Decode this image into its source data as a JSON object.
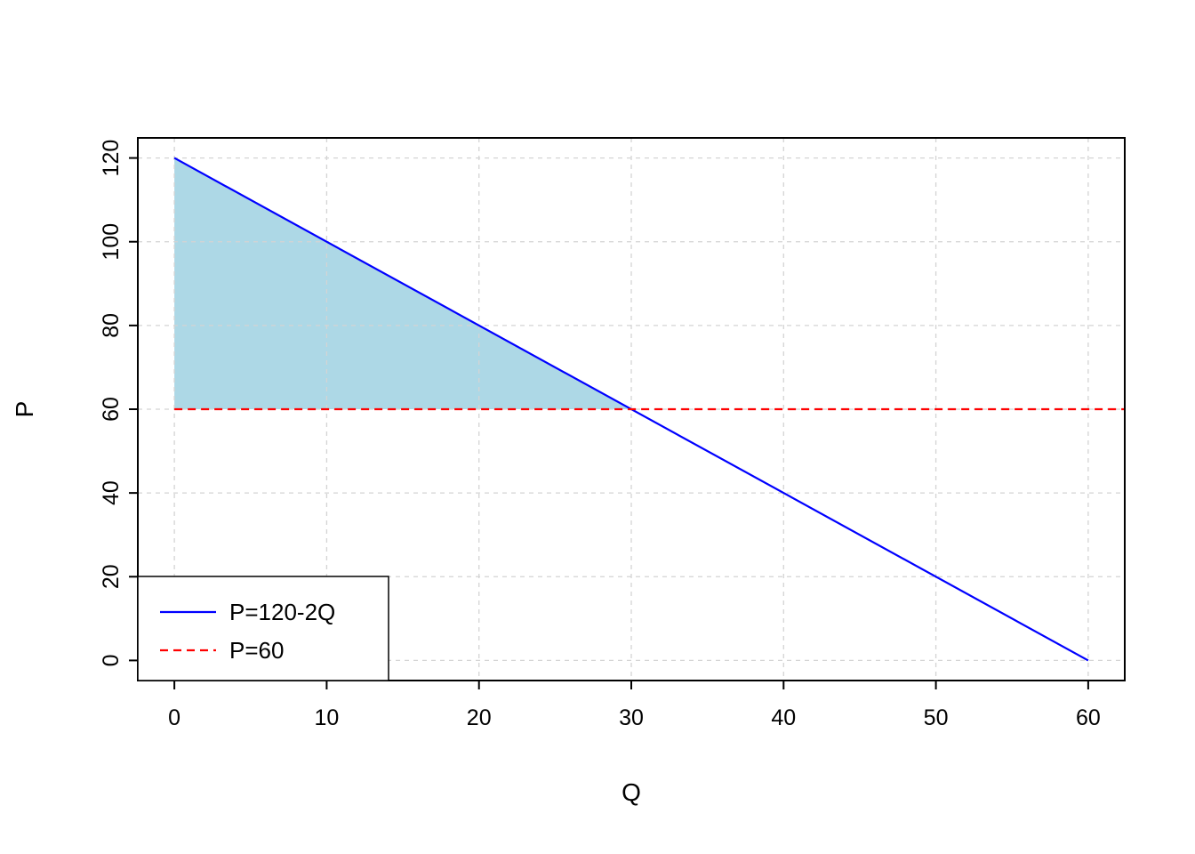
{
  "page": {
    "background": "#ffffff"
  },
  "chart_data": {
    "type": "line",
    "title": "",
    "xlabel": "Q",
    "ylabel": "P",
    "xlim": [
      0,
      60
    ],
    "ylim": [
      0,
      120
    ],
    "xticks": [
      0,
      10,
      20,
      30,
      40,
      50,
      60
    ],
    "yticks": [
      0,
      20,
      40,
      60,
      80,
      100,
      120
    ],
    "grid": true,
    "grid_color": "#d4d4d4",
    "axis_color": "#000000",
    "series": [
      {
        "name": "P=120-2Q",
        "color": "#0000ff",
        "dash": "none",
        "points": [
          [
            0,
            120
          ],
          [
            60,
            0
          ]
        ]
      },
      {
        "name": "P=60",
        "color": "#ff0000",
        "dash": "9 6",
        "points": [
          [
            0,
            60
          ],
          [
            62.4,
            60
          ]
        ]
      }
    ],
    "shaded_region": {
      "name": "consumer-surplus",
      "fill": "#add8e6",
      "vertices": [
        [
          0,
          60
        ],
        [
          0,
          120
        ],
        [
          30,
          60
        ]
      ]
    },
    "legend": {
      "position": "bottom-left",
      "entries": [
        {
          "label": "P=120-2Q",
          "color": "#0000ff",
          "dash": "none"
        },
        {
          "label": "P=60",
          "color": "#ff0000",
          "dash": "9 6"
        }
      ]
    }
  }
}
